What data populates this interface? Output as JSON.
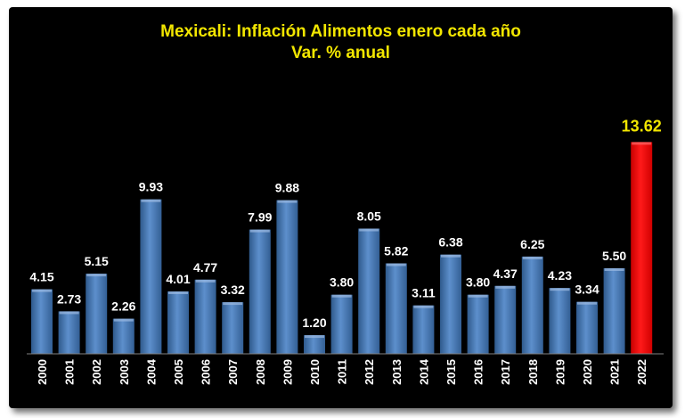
{
  "colors": {
    "background": "#000000",
    "title": "#f2e600",
    "bar": "#4f81bd",
    "highlight_bar": "#ff0000",
    "highlight_label": "#f2e600",
    "label": "#ffffff"
  },
  "chart_data": {
    "type": "bar",
    "title": "Mexicali: Inflación Alimentos enero cada año",
    "subtitle": "Var. % anual",
    "xlabel": "",
    "ylabel": "",
    "ylim": [
      0,
      14.5
    ],
    "grid": false,
    "legend": "none",
    "categories": [
      "2000",
      "2001",
      "2002",
      "2003",
      "2004",
      "2005",
      "2006",
      "2007",
      "2008",
      "2009",
      "2010",
      "2011",
      "2012",
      "2013",
      "2014",
      "2015",
      "2016",
      "2017",
      "2018",
      "2019",
      "2020",
      "2021",
      "2022"
    ],
    "values": [
      4.15,
      2.73,
      5.15,
      2.26,
      9.93,
      4.01,
      4.77,
      3.32,
      7.99,
      9.88,
      1.2,
      3.8,
      8.05,
      5.82,
      3.11,
      6.38,
      3.8,
      4.37,
      6.25,
      4.23,
      3.34,
      5.5,
      13.62
    ],
    "value_labels": [
      "4.15",
      "2.73",
      "5.15",
      "2.26",
      "9.93",
      "4.01",
      "4.77",
      "3.32",
      "7.99",
      "9.88",
      "1.20",
      "3.80",
      "8.05",
      "5.82",
      "3.11",
      "6.38",
      "3.80",
      "4.37",
      "6.25",
      "4.23",
      "3.34",
      "5.50",
      "13.62"
    ],
    "highlight_index": 22
  }
}
